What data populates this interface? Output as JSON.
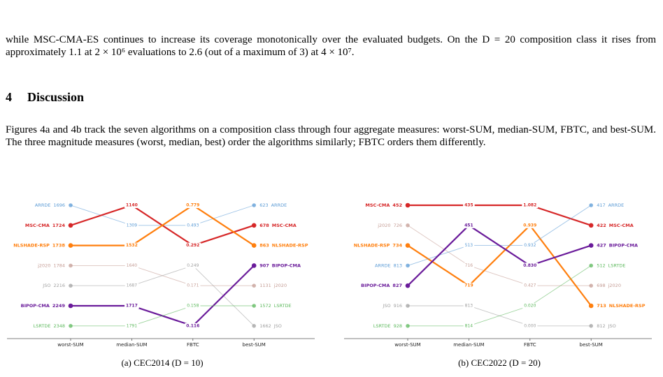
{
  "body": {
    "paragraph_1": "while MSC-CMA-ES continues to increase its coverage monotonically over the evaluated budgets. On the D = 20 composition class it rises from approximately 1.1 at 2 × 10⁶ evaluations to 2.6 (out of a maximum of 3) at 4 × 10⁷.",
    "section_number": "4",
    "section_title": "Discussion",
    "paragraph_2": "Figures 4a and 4b track the seven algorithms on a composition class through four aggregate measures: worst-SUM, median-SUM, FBTC, and best-SUM. The three magnitude measures (worst, median, best) order the algorithms similarly; FBTC orders them differently."
  },
  "chart_data": [
    {
      "type": "slope",
      "caption": "(a) CEC2014 (D = 10)",
      "categories": [
        "worst-SUM",
        "median-SUM",
        "FBTC",
        "best-SUM"
      ],
      "higher_is_better": [
        false,
        false,
        true,
        false
      ],
      "series": [
        {
          "name": "ARRDE",
          "color": "#5b9bd5",
          "bold": false,
          "values": [
            1696,
            1309,
            0.493,
            623
          ],
          "value_labels": [
            "1696",
            "1309",
            "0.493",
            "623"
          ]
        },
        {
          "name": "MSC-CMA",
          "color": "#d62728",
          "bold": true,
          "values": [
            1724,
            1140,
            0.292,
            678
          ],
          "value_labels": [
            "1724",
            "1140",
            "0.292",
            "678"
          ]
        },
        {
          "name": "NLSHADE-RSP",
          "color": "#ff7f0e",
          "bold": true,
          "values": [
            1738,
            1532,
            0.779,
            863
          ],
          "value_labels": [
            "1738",
            "1532",
            "0.779",
            "863"
          ]
        },
        {
          "name": "j2020",
          "color": "#c49c94",
          "bold": false,
          "values": [
            1784,
            1640,
            0.171,
            1131
          ],
          "value_labels": [
            "1784",
            "1640",
            "0.171",
            "1131"
          ]
        },
        {
          "name": "JSO",
          "color": "#a0a0a0",
          "bold": false,
          "values": [
            2216,
            1687,
            0.249,
            1662
          ],
          "value_labels": [
            "2216",
            "1687",
            "0.249",
            "1662"
          ]
        },
        {
          "name": "BIPOP-CMA",
          "color": "#6a1b9a",
          "bold": true,
          "values": [
            2249,
            1717,
            0.116,
            907
          ],
          "value_labels": [
            "2249",
            "1717",
            "0.116",
            "907"
          ]
        },
        {
          "name": "LSRTDE",
          "color": "#5cb85c",
          "bold": false,
          "values": [
            2348,
            1791,
            0.158,
            1572
          ],
          "value_labels": [
            "2348",
            "1791",
            "0.158",
            "1572"
          ]
        }
      ]
    },
    {
      "type": "slope",
      "caption": "(b) CEC2022 (D = 20)",
      "categories": [
        "worst-SUM",
        "median-SUM",
        "FBTC",
        "best-SUM"
      ],
      "higher_is_better": [
        false,
        false,
        true,
        false
      ],
      "series": [
        {
          "name": "MSC-CMA",
          "color": "#d62728",
          "bold": true,
          "values": [
            452,
            435,
            1.082,
            422
          ],
          "value_labels": [
            "452",
            "435",
            "1.082",
            "422"
          ]
        },
        {
          "name": "j2020",
          "color": "#c49c94",
          "bold": false,
          "values": [
            726,
            716,
            0.427,
            698
          ],
          "value_labels": [
            "726",
            "716",
            "0.427",
            "698"
          ]
        },
        {
          "name": "NLSHADE-RSP",
          "color": "#ff7f0e",
          "bold": true,
          "values": [
            734,
            719,
            0.939,
            713
          ],
          "value_labels": [
            "734",
            "719",
            "0.939",
            "713"
          ]
        },
        {
          "name": "ARRDE",
          "color": "#5b9bd5",
          "bold": false,
          "values": [
            813,
            513,
            0.932,
            417
          ],
          "value_labels": [
            "813",
            "513",
            "0.932",
            "417"
          ]
        },
        {
          "name": "BIPOP-CMA",
          "color": "#6a1b9a",
          "bold": true,
          "values": [
            827,
            451,
            0.83,
            427
          ],
          "value_labels": [
            "827",
            "451",
            "0.830",
            "427"
          ]
        },
        {
          "name": "JSO",
          "color": "#a0a0a0",
          "bold": false,
          "values": [
            916,
            813,
            0.0,
            812
          ],
          "value_labels": [
            "916",
            "813",
            "0.000",
            "812"
          ]
        },
        {
          "name": "LSRTDE",
          "color": "#5cb85c",
          "bold": false,
          "values": [
            928,
            814,
            0.02,
            512
          ],
          "value_labels": [
            "928",
            "814",
            "0.020",
            "512"
          ]
        }
      ]
    }
  ]
}
